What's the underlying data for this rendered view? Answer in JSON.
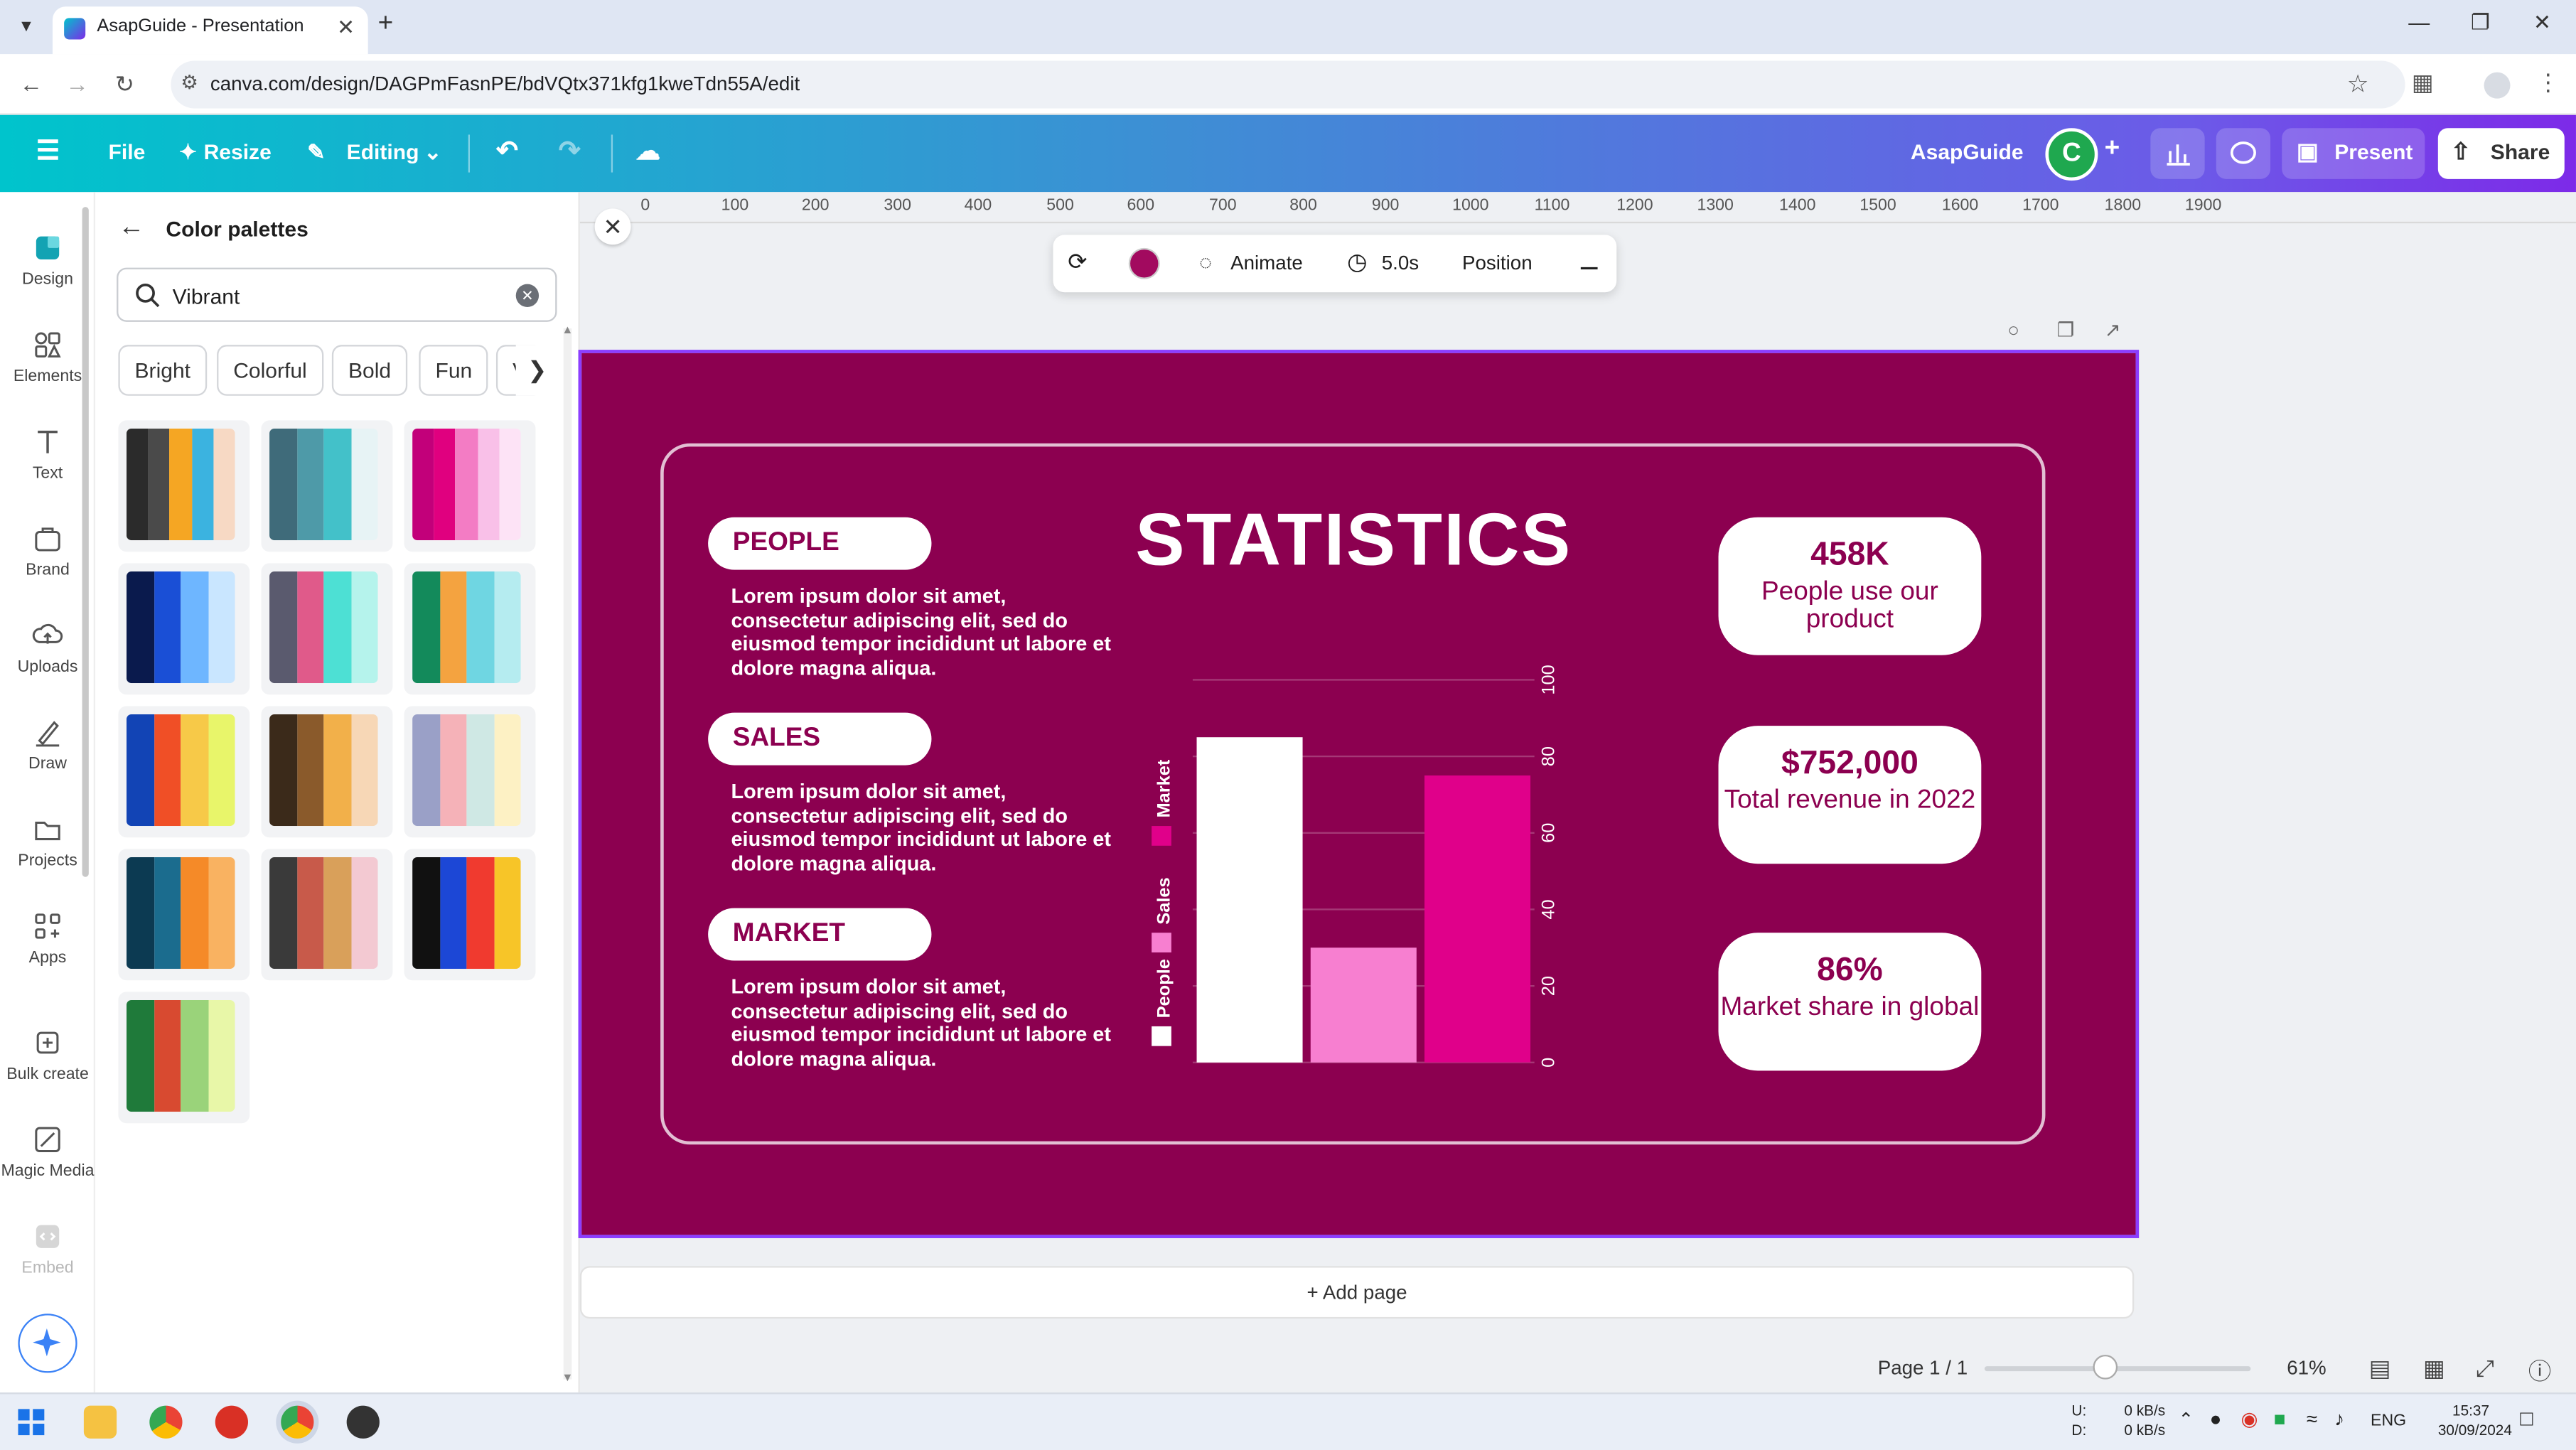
{
  "browser": {
    "tab_title": "AsapGuide - Presentation",
    "url": "canva.com/design/DAGPmFasnPE/bdVQtx371kfg1kweTdn55A/edit"
  },
  "header": {
    "file": "File",
    "resize": "Resize",
    "editing": "Editing",
    "team_name": "AsapGuide",
    "avatar_letter": "C",
    "present": "Present",
    "share": "Share",
    "brand_gradient": [
      "#00c4cc",
      "#7d2ae8"
    ]
  },
  "rail": {
    "items": [
      {
        "label": "Design",
        "icon": "design-icon"
      },
      {
        "label": "Elements",
        "icon": "elements-icon"
      },
      {
        "label": "Text",
        "icon": "text-icon"
      },
      {
        "label": "Brand",
        "icon": "brand-icon"
      },
      {
        "label": "Uploads",
        "icon": "uploads-icon"
      },
      {
        "label": "Draw",
        "icon": "draw-icon"
      },
      {
        "label": "Projects",
        "icon": "projects-icon"
      },
      {
        "label": "Apps",
        "icon": "apps-icon"
      },
      {
        "label": "Bulk create",
        "icon": "bulk-create-icon"
      },
      {
        "label": "Magic Media",
        "icon": "magic-media-icon"
      },
      {
        "label": "Embed",
        "icon": "embed-icon"
      }
    ]
  },
  "panel": {
    "title": "Color palettes",
    "search_value": "Vibrant",
    "chips": [
      "Bright",
      "Colorful",
      "Bold",
      "Fun",
      "V"
    ],
    "palettes": [
      [
        "#2b2b2b",
        "#4a4a4a",
        "#f5a623",
        "#3bb3e0",
        "#f7d9c4"
      ],
      [
        "#3f6b7a",
        "#4e9aa8",
        "#43c1c9",
        "#e7f3f5"
      ],
      [
        "#c2007a",
        "#e0007f",
        "#f37cc4",
        "#f9c0e8",
        "#fde3f6"
      ],
      [
        "#0a1a4d",
        "#1a4fd6",
        "#6eb6ff",
        "#c9e6ff"
      ],
      [
        "#5a5a6e",
        "#e05a8a",
        "#4de0d4",
        "#b5f3ec"
      ],
      [
        "#138a5b",
        "#f4a340",
        "#6fd6e2",
        "#b5ecf0"
      ],
      [
        "#1244b5",
        "#f04f26",
        "#f7c948",
        "#e8f56a"
      ],
      [
        "#3b2a1a",
        "#8a5a2b",
        "#f2b04a",
        "#f7d7b6"
      ],
      [
        "#9aa0c7",
        "#f5b2b8",
        "#cfe8e4",
        "#fdf1c4"
      ],
      [
        "#0c3a52",
        "#1b6c8e",
        "#f58a28",
        "#f9b261"
      ],
      [
        "#3a3a3a",
        "#c85a4a",
        "#d9a05a",
        "#f3c9d2"
      ],
      [
        "#111111",
        "#1c47d6",
        "#f03a2f",
        "#f7c528"
      ],
      [
        "#1f7a3a",
        "#d84a30",
        "#9ad37a",
        "#e8f7a8"
      ]
    ]
  },
  "ruler": {
    "ticks": [
      "0",
      "100",
      "200",
      "300",
      "400",
      "500",
      "600",
      "700",
      "800",
      "900",
      "1000",
      "1100",
      "1200",
      "1300",
      "1400",
      "1500",
      "1600",
      "1700",
      "1800",
      "1900"
    ]
  },
  "context_toolbar": {
    "animate": "Animate",
    "duration": "5.0s",
    "position": "Position",
    "color": "#a20a5f"
  },
  "slide": {
    "background": "#8c0050",
    "title": "STATISTICS",
    "sections": [
      {
        "label": "PEOPLE",
        "text": "Lorem ipsum dolor sit amet, consectetur adipiscing elit, sed do eiusmod tempor incididunt ut labore et dolore magna aliqua."
      },
      {
        "label": "SALES",
        "text": "Lorem ipsum dolor sit amet, consectetur adipiscing elit, sed do eiusmod tempor incididunt ut labore et dolore magna aliqua."
      },
      {
        "label": "MARKET",
        "text": "Lorem ipsum dolor sit amet, consectetur adipiscing elit, sed do eiusmod tempor incididunt ut labore et dolore magna aliqua."
      }
    ],
    "stats": [
      {
        "value": "458K",
        "desc": "People use our product"
      },
      {
        "value": "$752,000",
        "desc": "Total revenue in 2022"
      },
      {
        "value": "86%",
        "desc": "Market share in global"
      }
    ]
  },
  "chart_data": {
    "type": "bar",
    "categories": [
      "People",
      "Sales",
      "Market"
    ],
    "values": [
      85,
      30,
      75
    ],
    "colors": [
      "#ffffff",
      "#f77fd0",
      "#e0008a"
    ],
    "legend": [
      "People",
      "Sales",
      "Market"
    ],
    "legend_placement": "left (rotated)",
    "ylim": [
      0,
      100
    ],
    "yticks": [
      "0",
      "20",
      "40",
      "60",
      "80",
      "100"
    ],
    "grid": true
  },
  "footer": {
    "add_page": "+ Add page",
    "page": "Page 1 / 1",
    "zoom": "61%",
    "zoom_fraction": 0.45
  },
  "taskbar": {
    "net_up": "0 kB/s",
    "net_down": "0 kB/s",
    "net_u": "U:",
    "net_d": "D:",
    "lang": "ENG",
    "time": "15:37",
    "date": "30/09/2024"
  }
}
